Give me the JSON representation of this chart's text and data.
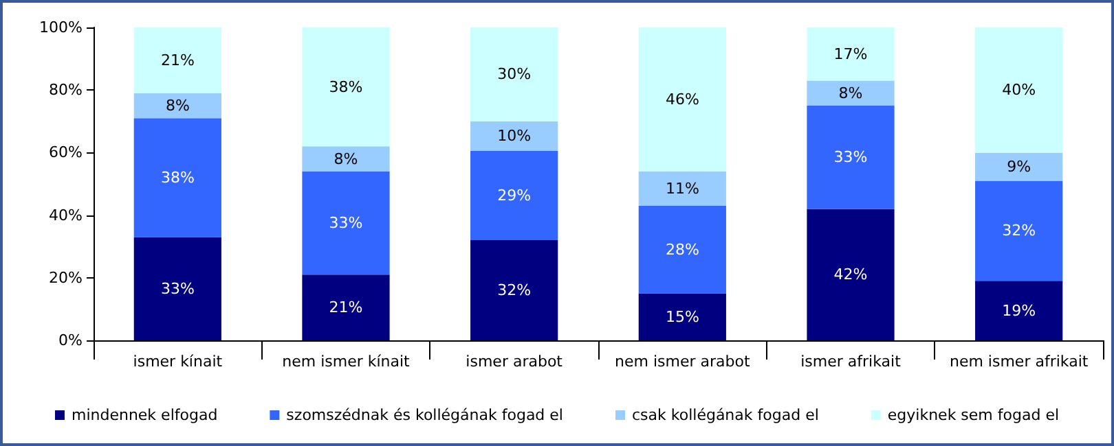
{
  "chart_data": {
    "type": "bar",
    "stacked": true,
    "categories": [
      "ismer kínait",
      "nem ismer kínait",
      "ismer arabot",
      "nem ismer arabot",
      "ismer afrikait",
      "nem ismer afrikait"
    ],
    "series": [
      {
        "name": "mindennek elfogad",
        "color": "#000080",
        "values": [
          33,
          21,
          32,
          15,
          42,
          19
        ],
        "value_labels": [
          "33%",
          "21%",
          "32%",
          "15%",
          "42%",
          "19%"
        ]
      },
      {
        "name": "szomszédnak és kollégának fogad el",
        "color": "#3366ff",
        "values": [
          38,
          33,
          28.5,
          28,
          33,
          32
        ],
        "value_labels": [
          "38%",
          "33%",
          "29%",
          "28%",
          "33%",
          "32%"
        ]
      },
      {
        "name": "csak kollégának fogad el",
        "color": "#99ccff",
        "values": [
          8,
          8,
          9.5,
          11,
          8,
          9
        ],
        "value_labels": [
          "8%",
          "8%",
          "10%",
          "11%",
          "8%",
          "9%"
        ]
      },
      {
        "name": "egyiknek sem fogad el",
        "color": "#ccffff",
        "values": [
          21,
          38,
          30,
          46,
          17,
          40
        ],
        "value_labels": [
          "21%",
          "38%",
          "30%",
          "46%",
          "17%",
          "40%"
        ]
      }
    ],
    "ylim": [
      0,
      100
    ],
    "yticks": [
      {
        "value": 0,
        "label": "0%"
      },
      {
        "value": 20,
        "label": "20%"
      },
      {
        "value": 40,
        "label": "40%"
      },
      {
        "value": 60,
        "label": "60%"
      },
      {
        "value": 80,
        "label": "80%"
      },
      {
        "value": 100,
        "label": "100%"
      }
    ],
    "grid": false,
    "legend": "bottom"
  }
}
